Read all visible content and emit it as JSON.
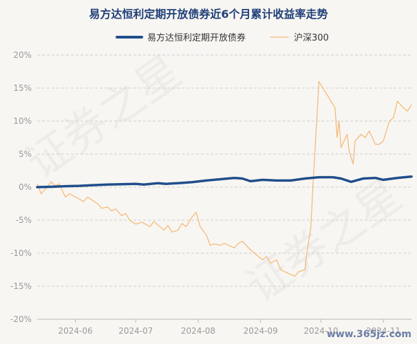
{
  "watermark": {
    "text": "证券之星",
    "site": "www.365jz.com"
  },
  "chart_data": {
    "type": "line",
    "title": "易方达恒利定期开放债券近6个月累计收益率走势",
    "legend_position": "top-center",
    "ylim": [
      -20,
      20
    ],
    "yticks": [
      20,
      15,
      10,
      5,
      0,
      -5,
      -10,
      -15,
      -20
    ],
    "ytick_labels": [
      "20%",
      "15%",
      "10%",
      "5%",
      "0%",
      "-5%",
      "-10%",
      "-15%",
      "-20%"
    ],
    "x_domain": [
      "2024-05-13",
      "2024-11-15"
    ],
    "xticks": [
      "2024-06-01",
      "2024-07-01",
      "2024-08-01",
      "2024-09-01",
      "2024-10-01",
      "2024-11-01"
    ],
    "xtick_labels": [
      "2024-06",
      "2024-07",
      "2024-08",
      "2024-09",
      "2024-10",
      "2024-11"
    ],
    "grid": "horizontal dashed",
    "series": [
      {
        "name": "易方达恒利定期开放债券",
        "color": "#1f4e8c",
        "points": [
          [
            "2024-05-13",
            0.0
          ],
          [
            "2024-05-20",
            0.05
          ],
          [
            "2024-05-27",
            0.15
          ],
          [
            "2024-06-03",
            0.2
          ],
          [
            "2024-06-10",
            0.3
          ],
          [
            "2024-06-17",
            0.4
          ],
          [
            "2024-06-24",
            0.45
          ],
          [
            "2024-07-01",
            0.5
          ],
          [
            "2024-07-05",
            0.4
          ],
          [
            "2024-07-12",
            0.6
          ],
          [
            "2024-07-16",
            0.5
          ],
          [
            "2024-07-22",
            0.6
          ],
          [
            "2024-07-29",
            0.75
          ],
          [
            "2024-08-05",
            1.0
          ],
          [
            "2024-08-12",
            1.2
          ],
          [
            "2024-08-19",
            1.4
          ],
          [
            "2024-08-23",
            1.3
          ],
          [
            "2024-08-27",
            0.9
          ],
          [
            "2024-09-02",
            1.1
          ],
          [
            "2024-09-09",
            1.0
          ],
          [
            "2024-09-16",
            1.0
          ],
          [
            "2024-09-23",
            1.3
          ],
          [
            "2024-09-30",
            1.5
          ],
          [
            "2024-10-07",
            1.5
          ],
          [
            "2024-10-11",
            1.3
          ],
          [
            "2024-10-16",
            0.8
          ],
          [
            "2024-10-22",
            1.3
          ],
          [
            "2024-10-28",
            1.4
          ],
          [
            "2024-11-01",
            1.1
          ],
          [
            "2024-11-08",
            1.4
          ],
          [
            "2024-11-15",
            1.6
          ]
        ]
      },
      {
        "name": "沪深300",
        "color": "#f3b673",
        "points": [
          [
            "2024-05-13",
            0.5
          ],
          [
            "2024-05-15",
            -1.0
          ],
          [
            "2024-05-17",
            -0.3
          ],
          [
            "2024-05-20",
            0.8
          ],
          [
            "2024-05-22",
            0.2
          ],
          [
            "2024-05-24",
            0.5
          ],
          [
            "2024-05-27",
            -1.5
          ],
          [
            "2024-05-29",
            -1.0
          ],
          [
            "2024-06-03",
            -1.8
          ],
          [
            "2024-06-05",
            -2.2
          ],
          [
            "2024-06-07",
            -1.5
          ],
          [
            "2024-06-12",
            -2.5
          ],
          [
            "2024-06-14",
            -3.2
          ],
          [
            "2024-06-17",
            -3.0
          ],
          [
            "2024-06-19",
            -3.6
          ],
          [
            "2024-06-21",
            -3.3
          ],
          [
            "2024-06-24",
            -4.3
          ],
          [
            "2024-06-26",
            -4.0
          ],
          [
            "2024-06-28",
            -5.0
          ],
          [
            "2024-07-01",
            -5.6
          ],
          [
            "2024-07-04",
            -5.3
          ],
          [
            "2024-07-08",
            -6.0
          ],
          [
            "2024-07-10",
            -5.2
          ],
          [
            "2024-07-15",
            -6.5
          ],
          [
            "2024-07-17",
            -5.8
          ],
          [
            "2024-07-19",
            -6.8
          ],
          [
            "2024-07-22",
            -6.5
          ],
          [
            "2024-07-24",
            -5.5
          ],
          [
            "2024-07-26",
            -6.0
          ],
          [
            "2024-07-29",
            -4.5
          ],
          [
            "2024-07-31",
            -3.8
          ],
          [
            "2024-08-02",
            -6.0
          ],
          [
            "2024-08-05",
            -7.2
          ],
          [
            "2024-08-07",
            -8.8
          ],
          [
            "2024-08-09",
            -8.6
          ],
          [
            "2024-08-12",
            -8.8
          ],
          [
            "2024-08-14",
            -8.5
          ],
          [
            "2024-08-16",
            -8.8
          ],
          [
            "2024-08-19",
            -9.2
          ],
          [
            "2024-08-21",
            -8.5
          ],
          [
            "2024-08-23",
            -8.2
          ],
          [
            "2024-08-27",
            -9.5
          ],
          [
            "2024-08-29",
            -10.0
          ],
          [
            "2024-09-02",
            -11.0
          ],
          [
            "2024-09-04",
            -10.5
          ],
          [
            "2024-09-06",
            -11.5
          ],
          [
            "2024-09-09",
            -11.0
          ],
          [
            "2024-09-11",
            -12.5
          ],
          [
            "2024-09-13",
            -12.8
          ],
          [
            "2024-09-18",
            -13.5
          ],
          [
            "2024-09-20",
            -12.8
          ],
          [
            "2024-09-23",
            -12.5
          ],
          [
            "2024-09-24",
            -10.0
          ],
          [
            "2024-09-25",
            -8.0
          ],
          [
            "2024-09-26",
            -6.0
          ],
          [
            "2024-09-27",
            0.0
          ],
          [
            "2024-09-30",
            16.0
          ],
          [
            "2024-10-08",
            12.0
          ],
          [
            "2024-10-09",
            7.5
          ],
          [
            "2024-10-10",
            10.0
          ],
          [
            "2024-10-11",
            6.0
          ],
          [
            "2024-10-14",
            8.0
          ],
          [
            "2024-10-15",
            5.5
          ],
          [
            "2024-10-17",
            3.5
          ],
          [
            "2024-10-18",
            7.0
          ],
          [
            "2024-10-21",
            8.0
          ],
          [
            "2024-10-23",
            7.5
          ],
          [
            "2024-10-25",
            8.5
          ],
          [
            "2024-10-28",
            6.5
          ],
          [
            "2024-10-30",
            6.5
          ],
          [
            "2024-11-01",
            7.0
          ],
          [
            "2024-11-04",
            10.0
          ],
          [
            "2024-11-06",
            10.5
          ],
          [
            "2024-11-08",
            13.0
          ],
          [
            "2024-11-11",
            12.0
          ],
          [
            "2024-11-13",
            11.5
          ],
          [
            "2024-11-15",
            12.5
          ]
        ]
      }
    ]
  }
}
